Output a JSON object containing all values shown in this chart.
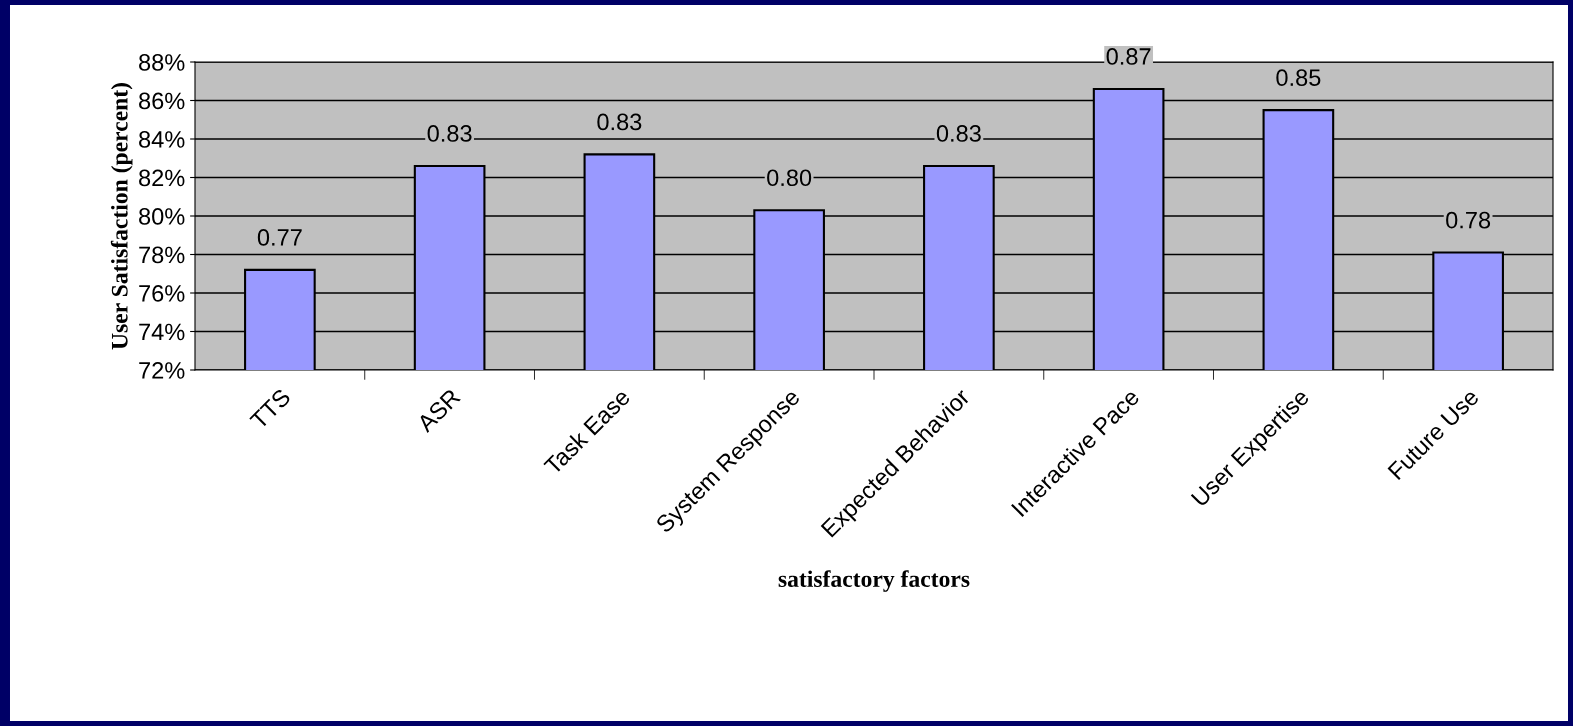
{
  "chart_data": {
    "type": "bar",
    "xlabel": "satisfactory factors",
    "ylabel": "User Satisfaction (percent)",
    "categories": [
      "TTS",
      "ASR",
      "Task Ease",
      "System Response",
      "Expected Behavior",
      "Interactive Pace",
      "User Expertise",
      "Future Use"
    ],
    "values": [
      0.772,
      0.826,
      0.832,
      0.803,
      0.826,
      0.866,
      0.855,
      0.781
    ],
    "value_labels": [
      "0.77",
      "0.83",
      "0.83",
      "0.80",
      "0.83",
      "0.87",
      "0.85",
      "0.78"
    ],
    "color": "#9999ff",
    "ylim": [
      0.72,
      0.88
    ],
    "yticks": [
      {
        "value": 0.72,
        "label": "72%"
      },
      {
        "value": 0.74,
        "label": "74%"
      },
      {
        "value": 0.76,
        "label": "76%"
      },
      {
        "value": 0.78,
        "label": "78%"
      },
      {
        "value": 0.8,
        "label": "80%"
      },
      {
        "value": 0.82,
        "label": "82%"
      },
      {
        "value": 0.84,
        "label": "84%"
      },
      {
        "value": 0.86,
        "label": "86%"
      },
      {
        "value": 0.88,
        "label": "88%"
      }
    ],
    "grid": "y"
  }
}
